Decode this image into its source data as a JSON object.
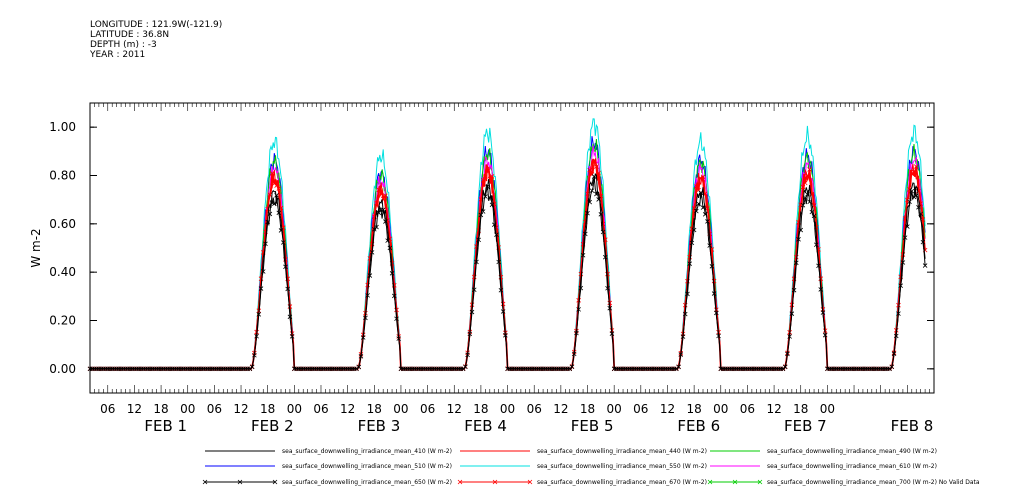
{
  "header": {
    "longitude": "LONGITUDE : 121.9W(-121.9)",
    "latitude": "LATITUDE : 36.8N",
    "depth": "DEPTH (m) : -3",
    "year": "YEAR : 2011"
  },
  "chart_data": {
    "type": "line",
    "title": "",
    "ylabel": "W m-2",
    "xlabel": "",
    "ylim": [
      -0.1,
      1.1
    ],
    "xlim_hours": [
      -22,
      168
    ],
    "y_ticks": [
      "0.00",
      "0.20",
      "0.40",
      "0.60",
      "0.80",
      "1.00"
    ],
    "hour_labels": [
      "06",
      "12",
      "18",
      "00",
      "06",
      "12",
      "18",
      "00",
      "06",
      "12",
      "18",
      "00",
      "06",
      "12",
      "18",
      "00",
      "06",
      "12",
      "18",
      "00",
      "06",
      "12",
      "18",
      "00",
      "06",
      "12",
      "18",
      "00"
    ],
    "day_labels": [
      "FEB  1",
      "FEB  2",
      "FEB  3",
      "FEB  4",
      "FEB  5",
      "FEB  6",
      "FEB  7",
      "FEB  8"
    ],
    "day_peaks_950": [
      0.96,
      0.9,
      1.0,
      1.04,
      0.96,
      0.98,
      1.0
    ],
    "series": [
      {
        "name": "sea_surface_downwelling_irradiance_mean_410 (W m-2)",
        "color": "#000000",
        "scale": 0.76,
        "marker": "none"
      },
      {
        "name": "sea_surface_downwelling_irradiance_mean_440 (W m-2)",
        "color": "#ff0000",
        "scale": 0.82,
        "marker": "none"
      },
      {
        "name": "sea_surface_downwelling_irradiance_mean_490 (W m-2)",
        "color": "#00cc00",
        "scale": 0.89,
        "marker": "none"
      },
      {
        "name": "sea_surface_downwelling_irradiance_mean_510 (W m-2)",
        "color": "#0000ff",
        "scale": 0.9,
        "marker": "none"
      },
      {
        "name": "sea_surface_downwelling_irradiance_mean_550 (W m-2)",
        "color": "#00e0e0",
        "scale": 0.98,
        "marker": "none"
      },
      {
        "name": "sea_surface_downwelling_irradiance_mean_610 (W m-2)",
        "color": "#ff00ff",
        "scale": 0.86,
        "marker": "none"
      },
      {
        "name": "sea_surface_downwelling_irradiance_mean_650 (W m-2)",
        "color": "#000000",
        "scale": 0.73,
        "marker": "x"
      },
      {
        "name": "sea_surface_downwelling_irradiance_mean_670 (W m-2)",
        "color": "#ff0000",
        "scale": 0.82,
        "marker": "x"
      },
      {
        "name": "sea_surface_downwelling_irradiance_mean_700 (W m-2) No Valid Data",
        "color": "#00cc00",
        "scale": 0,
        "marker": "x"
      }
    ]
  }
}
